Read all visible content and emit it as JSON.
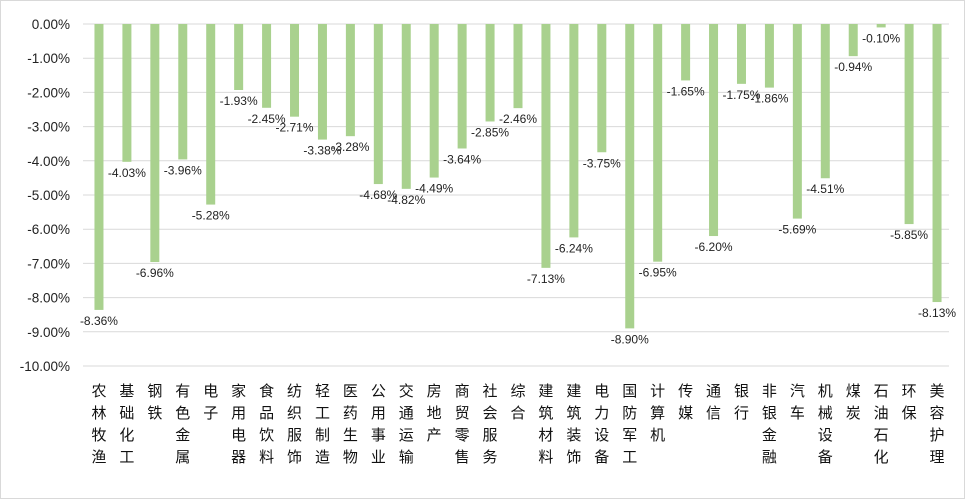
{
  "chart_data": {
    "type": "bar",
    "categories": [
      "农林牧渔",
      "基础化工",
      "钢铁",
      "有色金属",
      "电子",
      "家用电器",
      "食品饮料",
      "纺织服饰",
      "轻工制造",
      "医药生物",
      "公用事业",
      "交通运输",
      "房地产",
      "商贸零售",
      "社会服务",
      "综合",
      "建筑材料",
      "建筑装饰",
      "电力设备",
      "国防军工",
      "计算机",
      "传媒",
      "通信",
      "银行",
      "非银金融",
      "汽车",
      "机械设备",
      "煤炭",
      "石油石化",
      "环保",
      "美容护理"
    ],
    "values": [
      -8.36,
      -4.03,
      -6.96,
      -3.96,
      -5.28,
      -1.93,
      -2.45,
      -2.71,
      -3.38,
      -3.28,
      -4.68,
      -4.82,
      -4.49,
      -3.64,
      -2.85,
      -2.46,
      -7.13,
      -6.24,
      -3.75,
      -8.9,
      -6.95,
      -1.65,
      -6.2,
      -1.75,
      -1.86,
      -5.69,
      -4.51,
      -0.94,
      -0.1,
      -5.85,
      -8.13
    ],
    "data_labels": [
      "-8.36%",
      "-4.03%",
      "-6.96%",
      "-3.96%",
      "-5.28%",
      "-1.93%",
      "-2.45%",
      "-2.71%",
      "-3.38%",
      "-3.28%",
      "-4.68%",
      "-4.82%",
      "-4.49%",
      "-3.64%",
      "-2.85%",
      "-2.46%",
      "-7.13%",
      "-6.24%",
      "-3.75%",
      "-8.90%",
      "-6.95%",
      "-1.65%",
      "-6.20%",
      "-1.75%",
      "-1.86%",
      "-5.69%",
      "-4.51%",
      "-0.94%",
      "-0.10%",
      "-5.85%",
      "-8.13%"
    ],
    "yticks": [
      0,
      -1,
      -2,
      -3,
      -4,
      -5,
      -6,
      -7,
      -8,
      -9,
      -10
    ],
    "ytick_labels": [
      "0.00%",
      "-1.00%",
      "-2.00%",
      "-3.00%",
      "-4.00%",
      "-5.00%",
      "-6.00%",
      "-7.00%",
      "-8.00%",
      "-9.00%",
      "-10.00%"
    ],
    "ylim": [
      -10,
      0
    ],
    "grid": true,
    "bar_color": "#a9d18e",
    "grid_color": "#d9d9d9",
    "title": "",
    "xlabel": "",
    "ylabel": ""
  }
}
